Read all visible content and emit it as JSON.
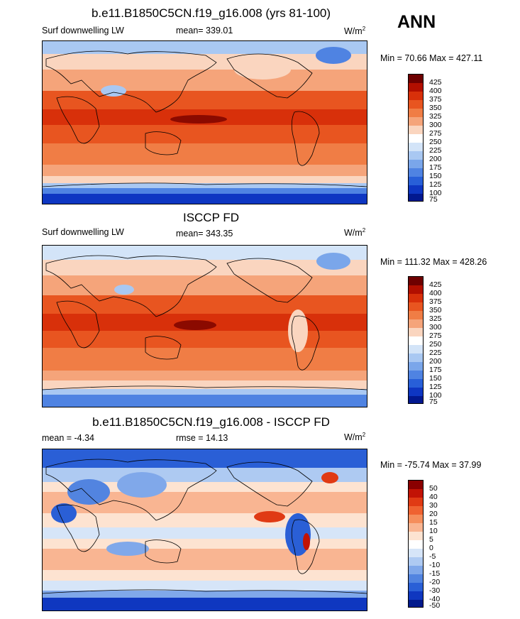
{
  "season": "ANN",
  "colors": {
    "sequential": [
      "#6e0000",
      "#b20f00",
      "#d8300a",
      "#e85520",
      "#f07d45",
      "#f5a47a",
      "#fad5bf",
      "#ffffff",
      "#d3e4f8",
      "#a9c8f2",
      "#7aa6ea",
      "#4f83e2",
      "#285fd8",
      "#0e36c2",
      "#02188f"
    ],
    "diverging": [
      "#8a0000",
      "#c21305",
      "#e03a14",
      "#ef6231",
      "#f58e5c",
      "#f9b592",
      "#fde3d1",
      "#ffffff",
      "#d6e5f8",
      "#aecaf2",
      "#80a8ea",
      "#5284e0",
      "#2a5fd6",
      "#0f37c0",
      "#021a8c"
    ]
  },
  "panels": [
    {
      "title": "b.e11.B1850C5CN.f19_g16.008 (yrs 81-100)",
      "left_label": "Surf downwelling LW",
      "center_label": "mean= 339.01",
      "units": "W/m",
      "units_sup": "2",
      "minmax": "Min =  70.66 Max = 427.11",
      "colorbar_labels": [
        "425",
        "400",
        "375",
        "350",
        "325",
        "300",
        "275",
        "250",
        "225",
        "200",
        "175",
        "150",
        "125",
        "100",
        "75"
      ]
    },
    {
      "title": "ISCCP FD",
      "left_label": "Surf downwelling LW",
      "center_label": "mean= 343.35",
      "units": "W/m",
      "units_sup": "2",
      "minmax": "Min = 111.32 Max = 428.26",
      "colorbar_labels": [
        "425",
        "400",
        "375",
        "350",
        "325",
        "300",
        "275",
        "250",
        "225",
        "200",
        "175",
        "150",
        "125",
        "100",
        "75"
      ]
    },
    {
      "title": "b.e11.B1850C5CN.f19_g16.008 - ISCCP FD",
      "left_label": "mean =  -4.34",
      "center_label": "rmse =  14.13",
      "units": "W/m",
      "units_sup": "2",
      "minmax": "Min = -75.74 Max =  37.99",
      "colorbar_labels": [
        "50",
        "40",
        "30",
        "20",
        "15",
        "10",
        "5",
        "0",
        "-5",
        "-10",
        "-15",
        "-20",
        "-30",
        "-40",
        "-50"
      ]
    }
  ]
}
